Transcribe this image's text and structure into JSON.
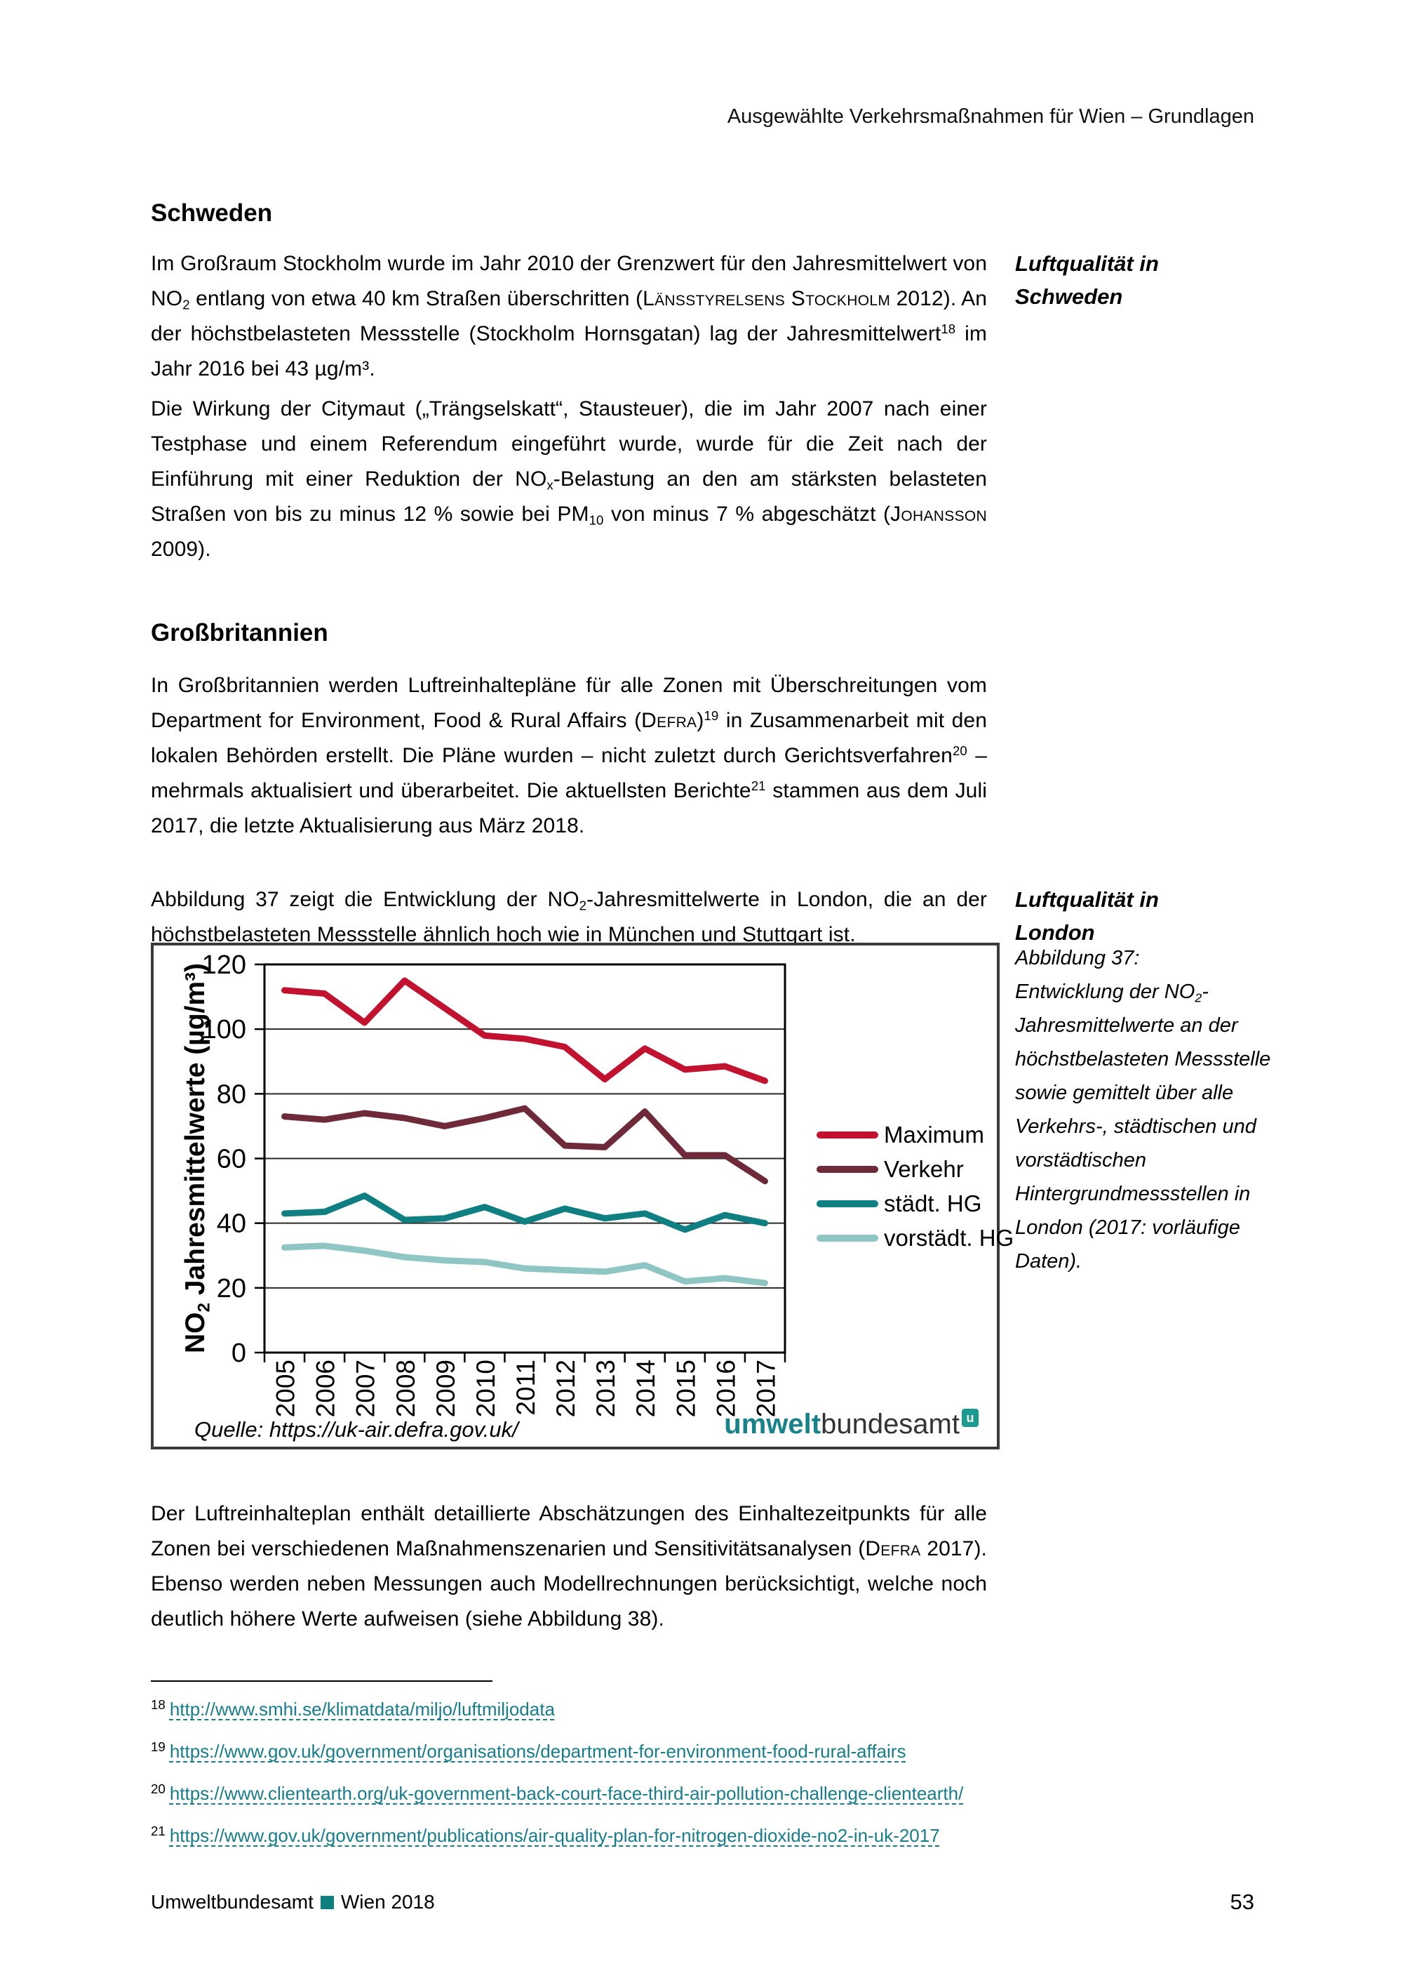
{
  "page": {
    "header": "Ausgewählte Verkehrsmaßnahmen für Wien – Grundlagen",
    "footer": {
      "left_a": "Umweltbundesamt",
      "left_b": "Wien 2018",
      "square_color": "#0f8080",
      "page_number": "53"
    }
  },
  "margin_notes": {
    "schweden": "Luftqualität in Schweden",
    "london": "Luftqualität in London"
  },
  "sections": {
    "schweden": {
      "heading": "Schweden",
      "para1_runs": [
        {
          "t": "Im Großraum Stockholm wurde im Jahr 2010 der Grenzwert für den Jahresmittelwert von NO"
        },
        {
          "t": "2",
          "s": "sub"
        },
        {
          "t": " entlang von etwa 40 km Straßen überschritten ("
        },
        {
          "t": "Länsstyrelsens Stockholm",
          "s": "sc"
        },
        {
          "t": " 2012). An der höchstbelasteten Messstelle (Stockholm Hornsgatan) lag der Jahresmittelwert"
        },
        {
          "t": "18",
          "s": "sup"
        },
        {
          "t": " im Jahr 2016 bei 43 µg/m³."
        }
      ],
      "para2_runs": [
        {
          "t": "Die Wirkung der Citymaut („Trängselskatt“, Stausteuer), die im Jahr 2007 nach einer Testphase und einem Referendum eingeführt wurde, wurde für die Zeit nach der Einführung mit einer Reduktion der NO"
        },
        {
          "t": "x",
          "s": "sub"
        },
        {
          "t": "-Belastung an den am stärksten belasteten Straßen von bis zu minus 12 % sowie bei PM"
        },
        {
          "t": "10",
          "s": "sub"
        },
        {
          "t": " von minus 7 % abgeschätzt ("
        },
        {
          "t": "Johansson",
          "s": "sc"
        },
        {
          "t": " 2009)."
        }
      ]
    },
    "grossbritannien": {
      "heading": "Großbritannien",
      "para1_runs": [
        {
          "t": "In Großbritannien werden Luftreinhaltepläne für alle Zonen mit Überschreitungen vom Department for Environment, Food & Rural Affairs ("
        },
        {
          "t": "Defra",
          "s": "sc"
        },
        {
          "t": ")"
        },
        {
          "t": "19",
          "s": "sup"
        },
        {
          "t": " in Zusammenarbeit mit den lokalen Behörden erstellt. Die Pläne wurden – nicht zuletzt durch Gerichtsverfahren"
        },
        {
          "t": "20",
          "s": "sup"
        },
        {
          "t": " – mehrmals aktualisiert und überarbeitet. Die aktuellsten Berichte"
        },
        {
          "t": "21",
          "s": "sup"
        },
        {
          "t": " stammen aus dem Juli 2017, die letzte Aktualisierung aus März 2018."
        }
      ],
      "para2_runs": [
        {
          "t": "Abbildung 37 zeigt die Entwicklung der NO"
        },
        {
          "t": "2",
          "s": "sub"
        },
        {
          "t": "-Jahresmittelwerte in London, die an der höchstbelasteten Messstelle ähnlich hoch wie in München und Stuttgart ist."
        }
      ]
    },
    "closing_runs": [
      {
        "t": "Der Luftreinhalteplan enthält detaillierte Abschätzungen des Einhaltezeitpunkts für alle Zonen bei verschiedenen Maßnahmenszenarien und Sensitivitätsanalysen ("
      },
      {
        "t": "Defra",
        "s": "sc"
      },
      {
        "t": " 2017). Ebenso werden neben Messungen auch Modellrechnungen berücksichtigt, welche noch deutlich höhere Werte aufweisen (siehe Abbildung 38)."
      }
    ]
  },
  "figure": {
    "caption_title": "Abbildung 37:",
    "caption_runs": [
      {
        "t": "Entwicklung der NO"
      },
      {
        "t": "2",
        "s": "sub"
      },
      {
        "t": "-Jahresmittelwerte an der höchstbelasteten Messstelle sowie gemittelt über alle Verkehrs-, städtischen und vorstädtischen Hintergrundmessstellen in London (2017: vorläufige Daten)."
      }
    ],
    "source": "Quelle: https://uk-air.defra.gov.uk/",
    "logo": {
      "part1": "umwelt",
      "part2": "bundesamt",
      "mark": "u"
    },
    "chart_data": {
      "type": "line",
      "title": "",
      "xlabel": "",
      "ylabel": "NO2 Jahresmittelwerte (µg/m³)",
      "ylabel_runs": [
        {
          "t": "NO"
        },
        {
          "t": "2",
          "s": "sub"
        },
        {
          "t": " Jahresmittelwerte (µg/m³)"
        }
      ],
      "categories": [
        "2005",
        "2006",
        "2007",
        "2008",
        "2009",
        "2010",
        "2011",
        "2012",
        "2013",
        "2014",
        "2015",
        "2016",
        "2017"
      ],
      "ylim": [
        0,
        120
      ],
      "ytick_step": 20,
      "grid": "horizontal",
      "legend_position": "right",
      "series": [
        {
          "name": "Maximum",
          "color": "#c11230",
          "values": [
            112,
            111,
            102,
            115,
            106.5,
            98,
            97,
            94.5,
            84.5,
            94,
            87.5,
            88.5,
            84
          ]
        },
        {
          "name": "Verkehr",
          "color": "#6e2a39",
          "values": [
            73,
            72,
            74,
            72.5,
            70,
            72.5,
            75.5,
            64,
            63.5,
            74.5,
            61,
            61,
            53
          ]
        },
        {
          "name": "städt. HG",
          "color": "#0f7f82",
          "values": [
            43,
            43.5,
            48.5,
            41,
            41.5,
            45,
            40.5,
            44.5,
            41.5,
            43,
            38,
            42.5,
            40
          ]
        },
        {
          "name": "vorstädt. HG",
          "color": "#8fc6c4",
          "values": [
            32.5,
            33,
            31.5,
            29.5,
            28.5,
            28,
            26,
            25.5,
            25,
            27,
            22,
            23,
            21.5
          ]
        }
      ]
    }
  },
  "footnotes": [
    {
      "num": "18",
      "url": "http://www.smhi.se/klimatdata/miljo/luftmiljodata"
    },
    {
      "num": "19",
      "url": "https://www.gov.uk/government/organisations/department-for-environment-food-rural-affairs"
    },
    {
      "num": "20",
      "url": "https://www.clientearth.org/uk-government-back-court-face-third-air-pollution-challenge-clientearth/"
    },
    {
      "num": "21",
      "url": "https://www.gov.uk/government/publications/air-quality-plan-for-nitrogen-dioxide-no2-in-uk-2017"
    }
  ]
}
